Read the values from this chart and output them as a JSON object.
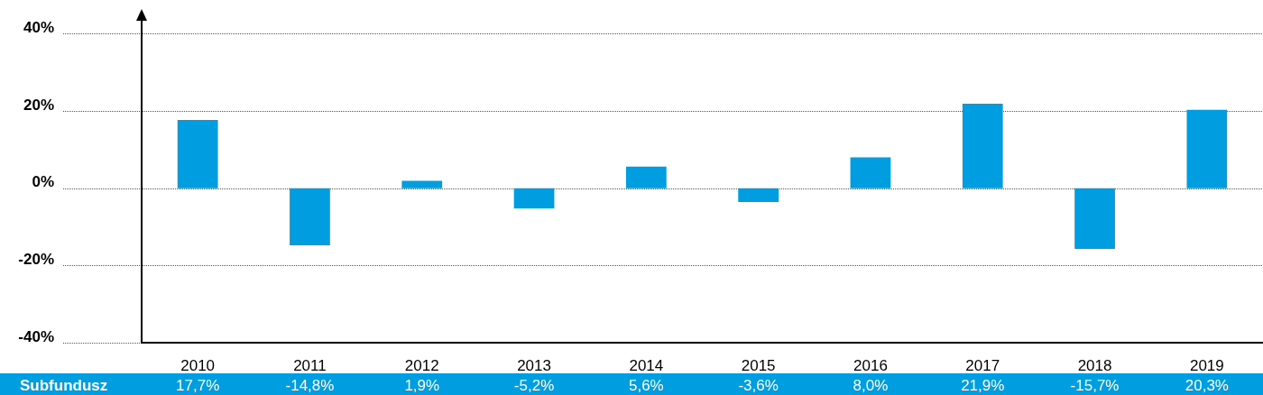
{
  "chart_data": {
    "type": "bar",
    "categories": [
      "2010",
      "2011",
      "2012",
      "2013",
      "2014",
      "2015",
      "2016",
      "2017",
      "2018",
      "2019"
    ],
    "series": [
      {
        "name": "Subfundusz",
        "color": "#009ee0",
        "values": [
          17.7,
          -14.8,
          1.9,
          -5.2,
          5.6,
          -3.6,
          8.0,
          21.9,
          -15.7,
          20.3
        ],
        "value_labels": [
          "17,7%",
          "-14,8%",
          "1,9%",
          "-5,2%",
          "5,6%",
          "-3,6%",
          "8,0%",
          "21,9%",
          "-15,7%",
          "20,3%"
        ]
      }
    ],
    "ylim": [
      -40,
      45
    ],
    "yticks": [
      {
        "value": -40,
        "label": "-40%"
      },
      {
        "value": -20,
        "label": "-20%"
      },
      {
        "value": 0,
        "label": "0%"
      },
      {
        "value": 20,
        "label": "20%"
      },
      {
        "value": 40,
        "label": "40%"
      }
    ],
    "grid": "y",
    "legend": false
  }
}
